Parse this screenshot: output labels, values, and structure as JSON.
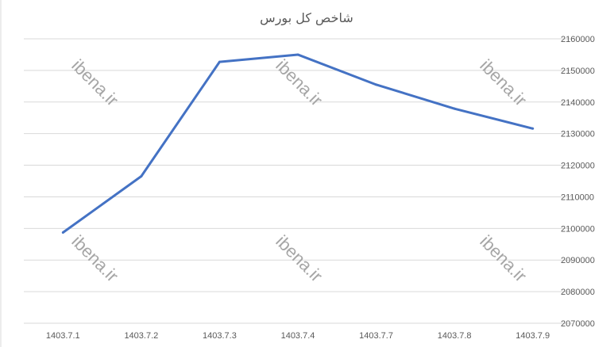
{
  "chart_data": {
    "type": "line",
    "title": "شاخص کل بورس",
    "xlabel": "",
    "ylabel": "",
    "categories": [
      "1403.7.1",
      "1403.7.2",
      "1403.7.3",
      "1403.7.4",
      "1403.7.7",
      "1403.7.8",
      "1403.7.9"
    ],
    "series": [
      {
        "values": [
          2098700,
          2116500,
          2152700,
          2155000,
          2145500,
          2137900,
          2131600
        ],
        "color": "#4472c4"
      }
    ],
    "ylim": [
      2070000,
      2160000
    ],
    "yticks": [
      2070000,
      2080000,
      2090000,
      2100000,
      2110000,
      2120000,
      2130000,
      2140000,
      2150000,
      2160000
    ],
    "y_axis_side": "right",
    "grid": true,
    "gridline_color": "#d9d9d9",
    "watermark": "ibena.ir"
  }
}
